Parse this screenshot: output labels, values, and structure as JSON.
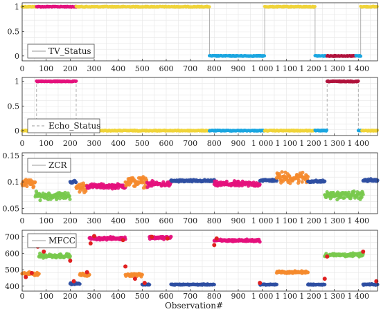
{
  "xlabel": "Observation#",
  "x_ticks": [
    "0",
    "100",
    "200",
    "300",
    "400",
    "500",
    "600",
    "700",
    "800",
    "900",
    "1 000",
    "1 100",
    "1 200",
    "1 300",
    "1 400"
  ],
  "colors": {
    "yellow": "#f0d43a",
    "magenta": "#e4117c",
    "cyan": "#1ba6e0",
    "crimson": "#b0123c",
    "orange": "#f58a2c",
    "green": "#78c94c",
    "blue": "#2f4fa2",
    "red": "#e02020",
    "gray": "#9a9a9a"
  },
  "chart_data": [
    {
      "type": "scatter",
      "legend": "TV_Status",
      "legend_style": "solid",
      "xlim": [
        0,
        1480
      ],
      "ylim": [
        -0.1,
        1.08
      ],
      "yticks": [
        "0",
        "0.5",
        "1"
      ],
      "ytick_values": [
        0,
        0.5,
        1
      ],
      "grid": true,
      "segments": [
        {
          "x": [
            0,
            60
          ],
          "y": 1,
          "color": "yellow"
        },
        {
          "x": [
            60,
            225
          ],
          "y": 1,
          "color": "magenta"
        },
        {
          "x": [
            225,
            780
          ],
          "y": 1,
          "color": "yellow"
        },
        {
          "x": [
            780,
            1010
          ],
          "y": 0,
          "color": "cyan"
        },
        {
          "x": [
            1010,
            1220
          ],
          "y": 1,
          "color": "yellow"
        },
        {
          "x": [
            1220,
            1270
          ],
          "y": 0,
          "color": "cyan"
        },
        {
          "x": [
            1270,
            1390
          ],
          "y": 0,
          "color": "crimson"
        },
        {
          "x": [
            1390,
            1410
          ],
          "y": 0,
          "color": "cyan"
        },
        {
          "x": [
            1410,
            1480
          ],
          "y": 1,
          "color": "yellow"
        }
      ],
      "transitions": [
        780,
        1010,
        1220,
        1410
      ]
    },
    {
      "type": "scatter",
      "legend": "Echo_Status",
      "legend_style": "dashed",
      "xlim": [
        0,
        1480
      ],
      "ylim": [
        -0.1,
        1.08
      ],
      "yticks": [
        "0",
        "0.5",
        "1"
      ],
      "ytick_values": [
        0,
        0.5,
        1
      ],
      "grid": true,
      "segments": [
        {
          "x": [
            0,
            60
          ],
          "y": 0,
          "color": "yellow"
        },
        {
          "x": [
            60,
            225
          ],
          "y": 1,
          "color": "magenta"
        },
        {
          "x": [
            225,
            780
          ],
          "y": 0,
          "color": "yellow"
        },
        {
          "x": [
            780,
            1010
          ],
          "y": 0,
          "color": "cyan"
        },
        {
          "x": [
            1010,
            1220
          ],
          "y": 0,
          "color": "yellow"
        },
        {
          "x": [
            1220,
            1270
          ],
          "y": 0,
          "color": "cyan"
        },
        {
          "x": [
            1270,
            1400
          ],
          "y": 1,
          "color": "crimson"
        },
        {
          "x": [
            1400,
            1415
          ],
          "y": 0,
          "color": "cyan"
        },
        {
          "x": [
            1415,
            1480
          ],
          "y": 0,
          "color": "yellow"
        }
      ],
      "transitions": [
        60,
        225,
        1270,
        1400
      ]
    },
    {
      "type": "scatter",
      "legend": "ZCR",
      "legend_style": "solid",
      "xlim": [
        0,
        1480
      ],
      "ylim": [
        0.04,
        0.155
      ],
      "yticks": [
        "0.05",
        "0.1",
        "0.15"
      ],
      "ytick_values": [
        0.05,
        0.1,
        0.15
      ],
      "grid": true,
      "segments": [
        {
          "x": [
            0,
            55
          ],
          "mean": 0.097,
          "spread": 0.012,
          "color": "orange"
        },
        {
          "x": [
            55,
            200
          ],
          "mean": 0.074,
          "spread": 0.01,
          "color": "green"
        },
        {
          "x": [
            200,
            225
          ],
          "mean": 0.1,
          "spread": 0.004,
          "color": "blue"
        },
        {
          "x": [
            225,
            270
          ],
          "mean": 0.09,
          "spread": 0.014,
          "color": "orange"
        },
        {
          "x": [
            270,
            430
          ],
          "mean": 0.092,
          "spread": 0.006,
          "color": "magenta"
        },
        {
          "x": [
            430,
            520
          ],
          "mean": 0.1,
          "spread": 0.014,
          "color": "orange"
        },
        {
          "x": [
            520,
            620
          ],
          "mean": 0.096,
          "spread": 0.007,
          "color": "magenta"
        },
        {
          "x": [
            620,
            800
          ],
          "mean": 0.102,
          "spread": 0.003,
          "color": "blue"
        },
        {
          "x": [
            800,
            990
          ],
          "mean": 0.096,
          "spread": 0.007,
          "color": "magenta"
        },
        {
          "x": [
            990,
            1060
          ],
          "mean": 0.103,
          "spread": 0.003,
          "color": "blue"
        },
        {
          "x": [
            1060,
            1190
          ],
          "mean": 0.108,
          "spread": 0.016,
          "color": "orange"
        },
        {
          "x": [
            1190,
            1260
          ],
          "mean": 0.101,
          "spread": 0.003,
          "color": "blue"
        },
        {
          "x": [
            1260,
            1420
          ],
          "mean": 0.075,
          "spread": 0.01,
          "color": "green"
        },
        {
          "x": [
            1420,
            1480
          ],
          "mean": 0.103,
          "spread": 0.004,
          "color": "blue"
        }
      ]
    },
    {
      "type": "scatter",
      "legend": "MFCC",
      "legend_style": "solid",
      "xlim": [
        0,
        1480
      ],
      "ylim": [
        370,
        740
      ],
      "yticks": [
        "400",
        "500",
        "600",
        "700"
      ],
      "ytick_values": [
        400,
        500,
        600,
        700
      ],
      "grid": true,
      "segments": [
        {
          "x": [
            0,
            70
          ],
          "mean": 475,
          "spread": 14,
          "color": "orange"
        },
        {
          "x": [
            70,
            200
          ],
          "mean": 585,
          "spread": 18,
          "color": "green"
        },
        {
          "x": [
            200,
            240
          ],
          "mean": 415,
          "spread": 6,
          "color": "blue"
        },
        {
          "x": [
            240,
            280
          ],
          "mean": 470,
          "spread": 12,
          "color": "orange"
        },
        {
          "x": [
            280,
            430
          ],
          "mean": 690,
          "spread": 12,
          "color": "magenta"
        },
        {
          "x": [
            430,
            500
          ],
          "mean": 470,
          "spread": 14,
          "color": "orange"
        },
        {
          "x": [
            500,
            530
          ],
          "mean": 410,
          "spread": 5,
          "color": "blue"
        },
        {
          "x": [
            530,
            620
          ],
          "mean": 695,
          "spread": 12,
          "color": "magenta"
        },
        {
          "x": [
            620,
            800
          ],
          "mean": 410,
          "spread": 4,
          "color": "blue"
        },
        {
          "x": [
            800,
            990
          ],
          "mean": 678,
          "spread": 10,
          "color": "magenta"
        },
        {
          "x": [
            990,
            1060
          ],
          "mean": 410,
          "spread": 4,
          "color": "blue"
        },
        {
          "x": [
            1060,
            1190
          ],
          "mean": 485,
          "spread": 10,
          "color": "orange"
        },
        {
          "x": [
            1190,
            1260
          ],
          "mean": 410,
          "spread": 4,
          "color": "blue"
        },
        {
          "x": [
            1260,
            1420
          ],
          "mean": 590,
          "spread": 14,
          "color": "green"
        },
        {
          "x": [
            1420,
            1480
          ],
          "mean": 410,
          "spread": 5,
          "color": "blue"
        }
      ],
      "red_markers": [
        [
          15,
          455
        ],
        [
          40,
          480
        ],
        [
          65,
          640
        ],
        [
          90,
          610
        ],
        [
          200,
          555
        ],
        [
          215,
          430
        ],
        [
          270,
          485
        ],
        [
          285,
          660
        ],
        [
          300,
          705
        ],
        [
          420,
          680
        ],
        [
          430,
          520
        ],
        [
          470,
          445
        ],
        [
          510,
          420
        ],
        [
          540,
          700
        ],
        [
          605,
          690
        ],
        [
          800,
          650
        ],
        [
          810,
          690
        ],
        [
          990,
          420
        ],
        [
          1260,
          445
        ],
        [
          1270,
          580
        ],
        [
          1420,
          610
        ],
        [
          1475,
          430
        ]
      ]
    }
  ]
}
